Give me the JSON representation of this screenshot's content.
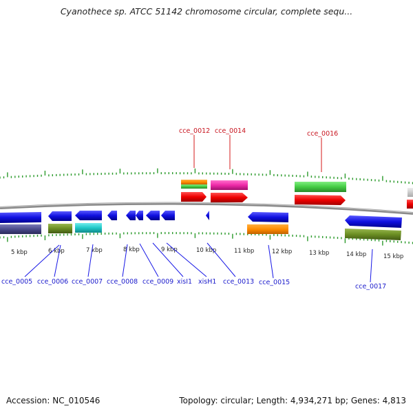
{
  "header": {
    "title": "Cyanothece sp. ATCC 51142 chromosome circular, complete sequ..."
  },
  "footer": {
    "accession": "Accession: NC_010546",
    "topology": "Topology: circular; Length: 4,934,271 bp; Genes: 4,813"
  },
  "scale_labels": [
    "5 kbp",
    "6 kbp",
    "7 kbp",
    "8 kbp",
    "9 kbp",
    "10 kbp",
    "11 kbp",
    "12 kbp",
    "13 kbp",
    "14 kbp",
    "15 kbp"
  ],
  "genes_lower": [
    {
      "name": "cce_0005",
      "color": "#1515e6"
    },
    {
      "name": "cce_0006",
      "color": "#1515e6"
    },
    {
      "name": "cce_0007",
      "color": "#1515e6"
    },
    {
      "name": "cce_0008",
      "color": "#1515e6"
    },
    {
      "name": "cce_0009",
      "color": "#1515e6"
    },
    {
      "name": "xisI1",
      "color": "#1515e6"
    },
    {
      "name": "xisH1",
      "color": "#1515e6"
    },
    {
      "name": "cce_0013",
      "color": "#1515e6"
    },
    {
      "name": "cce_0015",
      "color": "#1515e6"
    },
    {
      "name": "cce_0017",
      "color": "#1515e6"
    }
  ],
  "genes_upper": [
    {
      "name": "cce_0012",
      "color": "#d61a1a"
    },
    {
      "name": "cce_0014",
      "color": "#d61a1a"
    },
    {
      "name": "cce_0016",
      "color": "#d61a1a"
    }
  ],
  "colors": {
    "forward": "#ee0000",
    "reverse": "#1010e0",
    "orange": "#ff8c00",
    "green": "#44cc44",
    "magenta": "#ee2aa8",
    "olive": "#6b8e23",
    "cyan": "#20c8c8",
    "navy": "#4a4a8a",
    "tick": "#2a9a2a",
    "backbone": "#8a8a8a"
  }
}
